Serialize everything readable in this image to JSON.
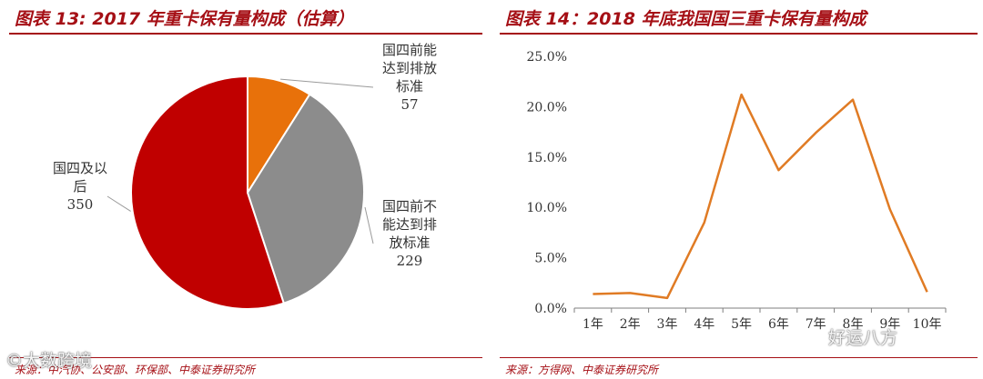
{
  "left_panel": {
    "title": "图表 13:   2017 年重卡保有量构成（估算）",
    "source": "来源：中汽协、公安部、环保部、中泰证券研究所"
  },
  "right_panel": {
    "title": "图表 14：2018 年底我国国三重卡保有量构成",
    "source": "来源：方得网、中泰证券研究所"
  },
  "watermarks": {
    "left": "©大数跨境",
    "right": "好运八方"
  },
  "chart_data": [
    {
      "type": "pie",
      "title": "2017 年重卡保有量构成（估算）",
      "slices": [
        {
          "label_lines": [
            "国四前能",
            "达到排放",
            "标准"
          ],
          "value": 57,
          "color": "#e8710a"
        },
        {
          "label_lines": [
            "国四前不",
            "能达到排",
            "放标准"
          ],
          "value": 229,
          "color": "#8c8c8c"
        },
        {
          "label_lines": [
            "国四及以",
            "后"
          ],
          "value": 350,
          "color": "#c00000"
        }
      ]
    },
    {
      "type": "line",
      "title": "2018 年底我国国三重卡保有量构成",
      "categories": [
        "1年",
        "2年",
        "3年",
        "4年",
        "5年",
        "6年",
        "7年",
        "8年",
        "9年",
        "10年"
      ],
      "series": [
        {
          "values": [
            0.014,
            0.015,
            0.01,
            0.085,
            0.212,
            0.137,
            0.174,
            0.207,
            0.098,
            0.016
          ],
          "color": "#e07b24"
        }
      ],
      "ylim": [
        0,
        0.25
      ],
      "yticks": [
        "0.0%",
        "5.0%",
        "10.0%",
        "15.0%",
        "20.0%",
        "25.0%"
      ],
      "grid": false
    }
  ]
}
